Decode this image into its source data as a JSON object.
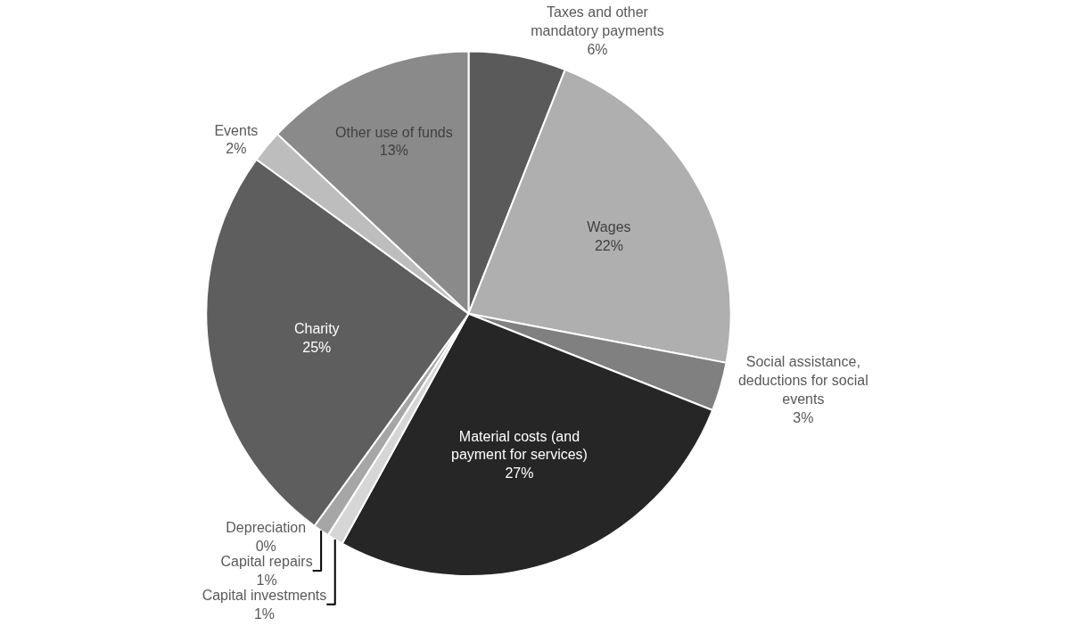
{
  "chart_data": {
    "type": "pie",
    "categories": [
      "Taxes and other mandatory payments",
      "Wages",
      "Social assistance, deductions for social events",
      "Material costs (and payment for services)",
      "Capital investments",
      "Capital repairs",
      "Depreciation",
      "Charity",
      "Events",
      "Other use of funds"
    ],
    "values": [
      6,
      22,
      3,
      27,
      1,
      1,
      0,
      25,
      2,
      13
    ],
    "value_labels": [
      "6%",
      "22%",
      "3%",
      "27%",
      "1%",
      "1%",
      "0%",
      "25%",
      "2%",
      "13%"
    ],
    "colors": [
      "#5a5a5a",
      "#afafaf",
      "#808080",
      "#262626",
      "#d6d6d6",
      "#a6a6a6",
      "#7a7a7a",
      "#5e5e5e",
      "#bdbdbd",
      "#8a8a8a"
    ],
    "legend": false
  }
}
